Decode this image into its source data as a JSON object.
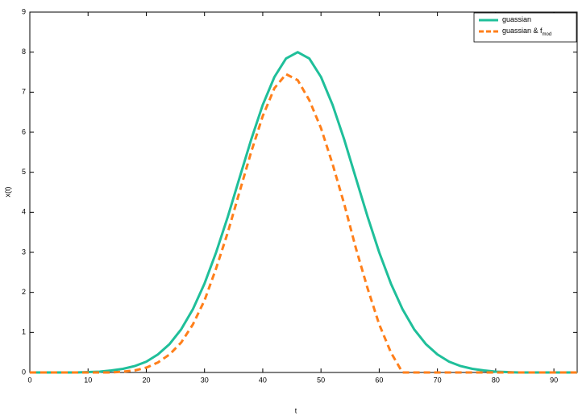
{
  "chart_data": {
    "type": "line",
    "xlabel": "t",
    "ylabel": "x(t)",
    "x": [
      0,
      2,
      4,
      6,
      8,
      10,
      12,
      14,
      16,
      18,
      20,
      22,
      24,
      26,
      28,
      30,
      32,
      34,
      36,
      38,
      40,
      42,
      44,
      46,
      48,
      50,
      52,
      54,
      56,
      58,
      60,
      62,
      64,
      66,
      68,
      70,
      72,
      74,
      76,
      78,
      80,
      82,
      84,
      86,
      88,
      90,
      92,
      94
    ],
    "series": [
      {
        "name": "guassian",
        "color": "#1fbf9a",
        "dashed": false,
        "values": [
          0,
          0,
          0,
          0,
          0,
          0.01,
          0.02,
          0.05,
          0.09,
          0.16,
          0.27,
          0.45,
          0.71,
          1.08,
          1.58,
          2.22,
          3.0,
          3.89,
          4.85,
          5.81,
          6.68,
          7.38,
          7.84,
          8,
          7.84,
          7.38,
          6.68,
          5.81,
          4.85,
          3.89,
          3.0,
          2.22,
          1.58,
          1.08,
          0.71,
          0.45,
          0.27,
          0.16,
          0.09,
          0.05,
          0.02,
          0.01,
          0,
          0,
          0,
          0,
          0,
          0
        ]
      },
      {
        "name": "guassian & f",
        "name_subscript": "mod",
        "color": "#ff7f1a",
        "dashed": true,
        "values": [
          0,
          0,
          0,
          0,
          0,
          0,
          0,
          0,
          0.02,
          0.05,
          0.12,
          0.25,
          0.45,
          0.75,
          1.2,
          1.8,
          2.6,
          3.5,
          4.5,
          5.5,
          6.4,
          7.1,
          7.45,
          7.3,
          6.8,
          6.1,
          5.2,
          4.2,
          3.1,
          2.1,
          1.2,
          0.5,
          0,
          0,
          0,
          0,
          0,
          0,
          0,
          0,
          0,
          0,
          0,
          0,
          0,
          0,
          0,
          0
        ]
      }
    ],
    "xlim": [
      0,
      94
    ],
    "ylim": [
      0,
      9
    ],
    "xticks": [
      0,
      10,
      20,
      30,
      40,
      50,
      60,
      70,
      80,
      90
    ],
    "yticks": [
      0,
      1,
      2,
      3,
      4,
      5,
      6,
      7,
      8,
      9
    ],
    "legend": "upper right"
  }
}
